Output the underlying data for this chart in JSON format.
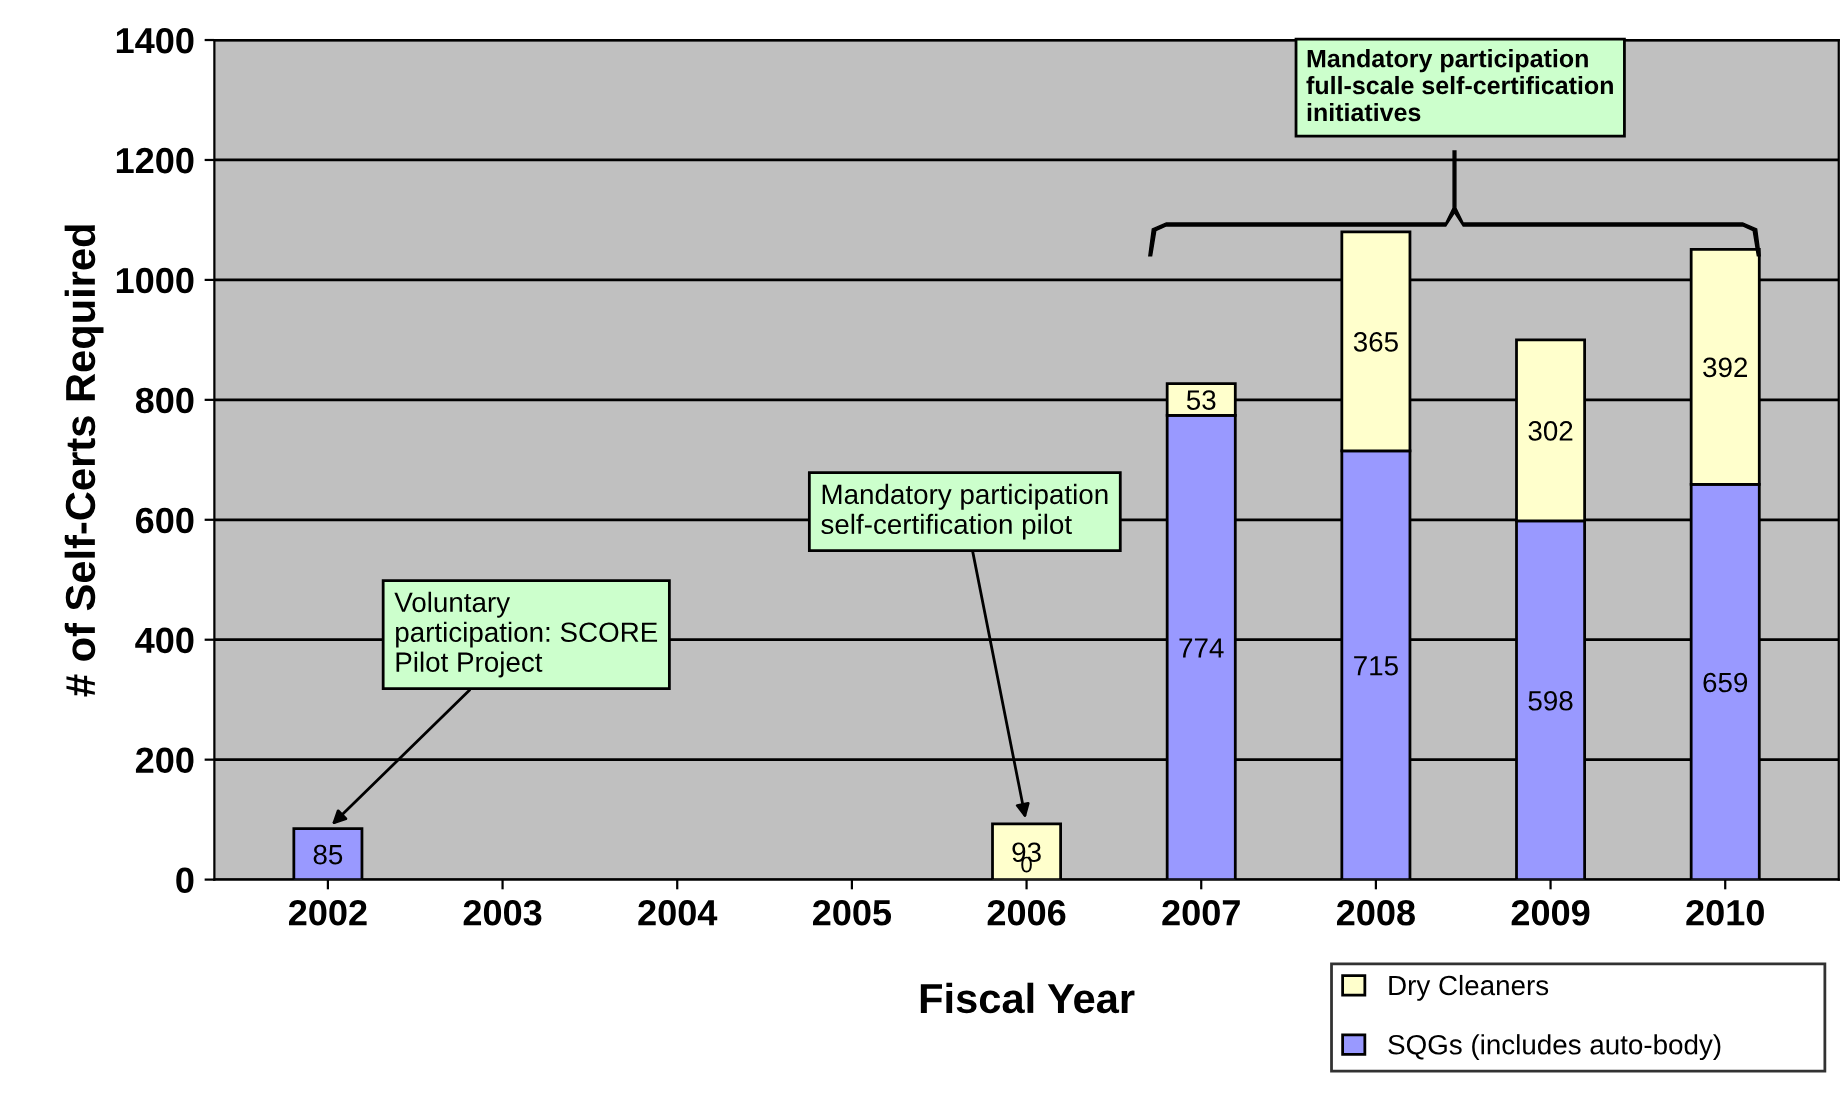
{
  "chart_data": {
    "type": "bar",
    "stacked": true,
    "xlabel": "Fiscal Year",
    "ylabel": "# of Self-Certs Required",
    "categories": [
      "2002",
      "2003",
      "2004",
      "2005",
      "2006",
      "2007",
      "2008",
      "2009",
      "2010"
    ],
    "series": [
      {
        "name": "SQGs (includes auto-body)",
        "color": "#9999ff",
        "values": [
          85,
          null,
          null,
          null,
          0,
          774,
          715,
          598,
          659
        ],
        "value_labels": [
          "85",
          null,
          null,
          null,
          "0",
          "774",
          "715",
          "598",
          "659"
        ]
      },
      {
        "name": "Dry Cleaners",
        "color": "#ffffcc",
        "values": [
          null,
          null,
          null,
          null,
          93,
          53,
          365,
          302,
          392
        ],
        "value_labels": [
          null,
          null,
          null,
          null,
          "93",
          "53",
          "365",
          "302",
          "392"
        ]
      }
    ],
    "ylim": [
      0,
      1400
    ],
    "yticks": [
      0,
      200,
      400,
      600,
      800,
      1000,
      1200,
      1400
    ],
    "grid": "y",
    "legend": "bottom right",
    "annotations": [
      {
        "text": "Voluntary participation: SCORE Pilot Project",
        "x": "2002",
        "y": 85
      },
      {
        "text": "Mandatory participation self-certification pilot",
        "x": "2006",
        "y": 93
      },
      "Mandatory participation full-scale self-certification initiatives"
    ]
  }
}
